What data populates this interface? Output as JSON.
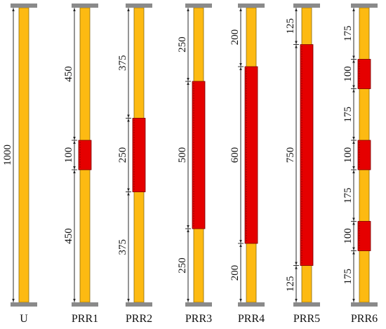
{
  "total_length": 1000,
  "colors": {
    "column": "#FDBA12",
    "column_edge": "#8a6a10",
    "wrap": "#E50000",
    "wrap_edge": "#7a0000",
    "plate": "#8a8a8a",
    "dim": "#222222"
  },
  "columns": [
    {
      "id": "U",
      "label": "U",
      "segments": [
        {
          "length": 1000,
          "text": "1000",
          "wrapped": false
        }
      ]
    },
    {
      "id": "PRR1",
      "label": "PRR1",
      "segments": [
        {
          "length": 450,
          "text": "450",
          "wrapped": false
        },
        {
          "length": 100,
          "text": "100",
          "wrapped": true
        },
        {
          "length": 450,
          "text": "450",
          "wrapped": false
        }
      ]
    },
    {
      "id": "PRR2",
      "label": "PRR2",
      "segments": [
        {
          "length": 375,
          "text": "375",
          "wrapped": false
        },
        {
          "length": 250,
          "text": "250",
          "wrapped": true
        },
        {
          "length": 375,
          "text": "375",
          "wrapped": false
        }
      ]
    },
    {
      "id": "PRR3",
      "label": "PRR3",
      "segments": [
        {
          "length": 250,
          "text": "250",
          "wrapped": false
        },
        {
          "length": 500,
          "text": "500",
          "wrapped": true
        },
        {
          "length": 250,
          "text": "250",
          "wrapped": false
        }
      ]
    },
    {
      "id": "PRR4",
      "label": "PRR4",
      "segments": [
        {
          "length": 200,
          "text": "200",
          "wrapped": false
        },
        {
          "length": 600,
          "text": "600",
          "wrapped": true
        },
        {
          "length": 200,
          "text": "200",
          "wrapped": false
        }
      ]
    },
    {
      "id": "PRR5",
      "label": "PRR5",
      "segments": [
        {
          "length": 125,
          "text": "125",
          "wrapped": false
        },
        {
          "length": 750,
          "text": "750",
          "wrapped": true
        },
        {
          "length": 125,
          "text": "125",
          "wrapped": false
        }
      ]
    },
    {
      "id": "PRR6",
      "label": "PRR6",
      "segments": [
        {
          "length": 175,
          "text": "175",
          "wrapped": false
        },
        {
          "length": 100,
          "text": "100",
          "wrapped": true
        },
        {
          "length": 175,
          "text": "175",
          "wrapped": false
        },
        {
          "length": 100,
          "text": "100",
          "wrapped": true
        },
        {
          "length": 175,
          "text": "175",
          "wrapped": false
        },
        {
          "length": 100,
          "text": "100",
          "wrapped": true
        },
        {
          "length": 175,
          "text": "175",
          "wrapped": false
        }
      ]
    }
  ]
}
